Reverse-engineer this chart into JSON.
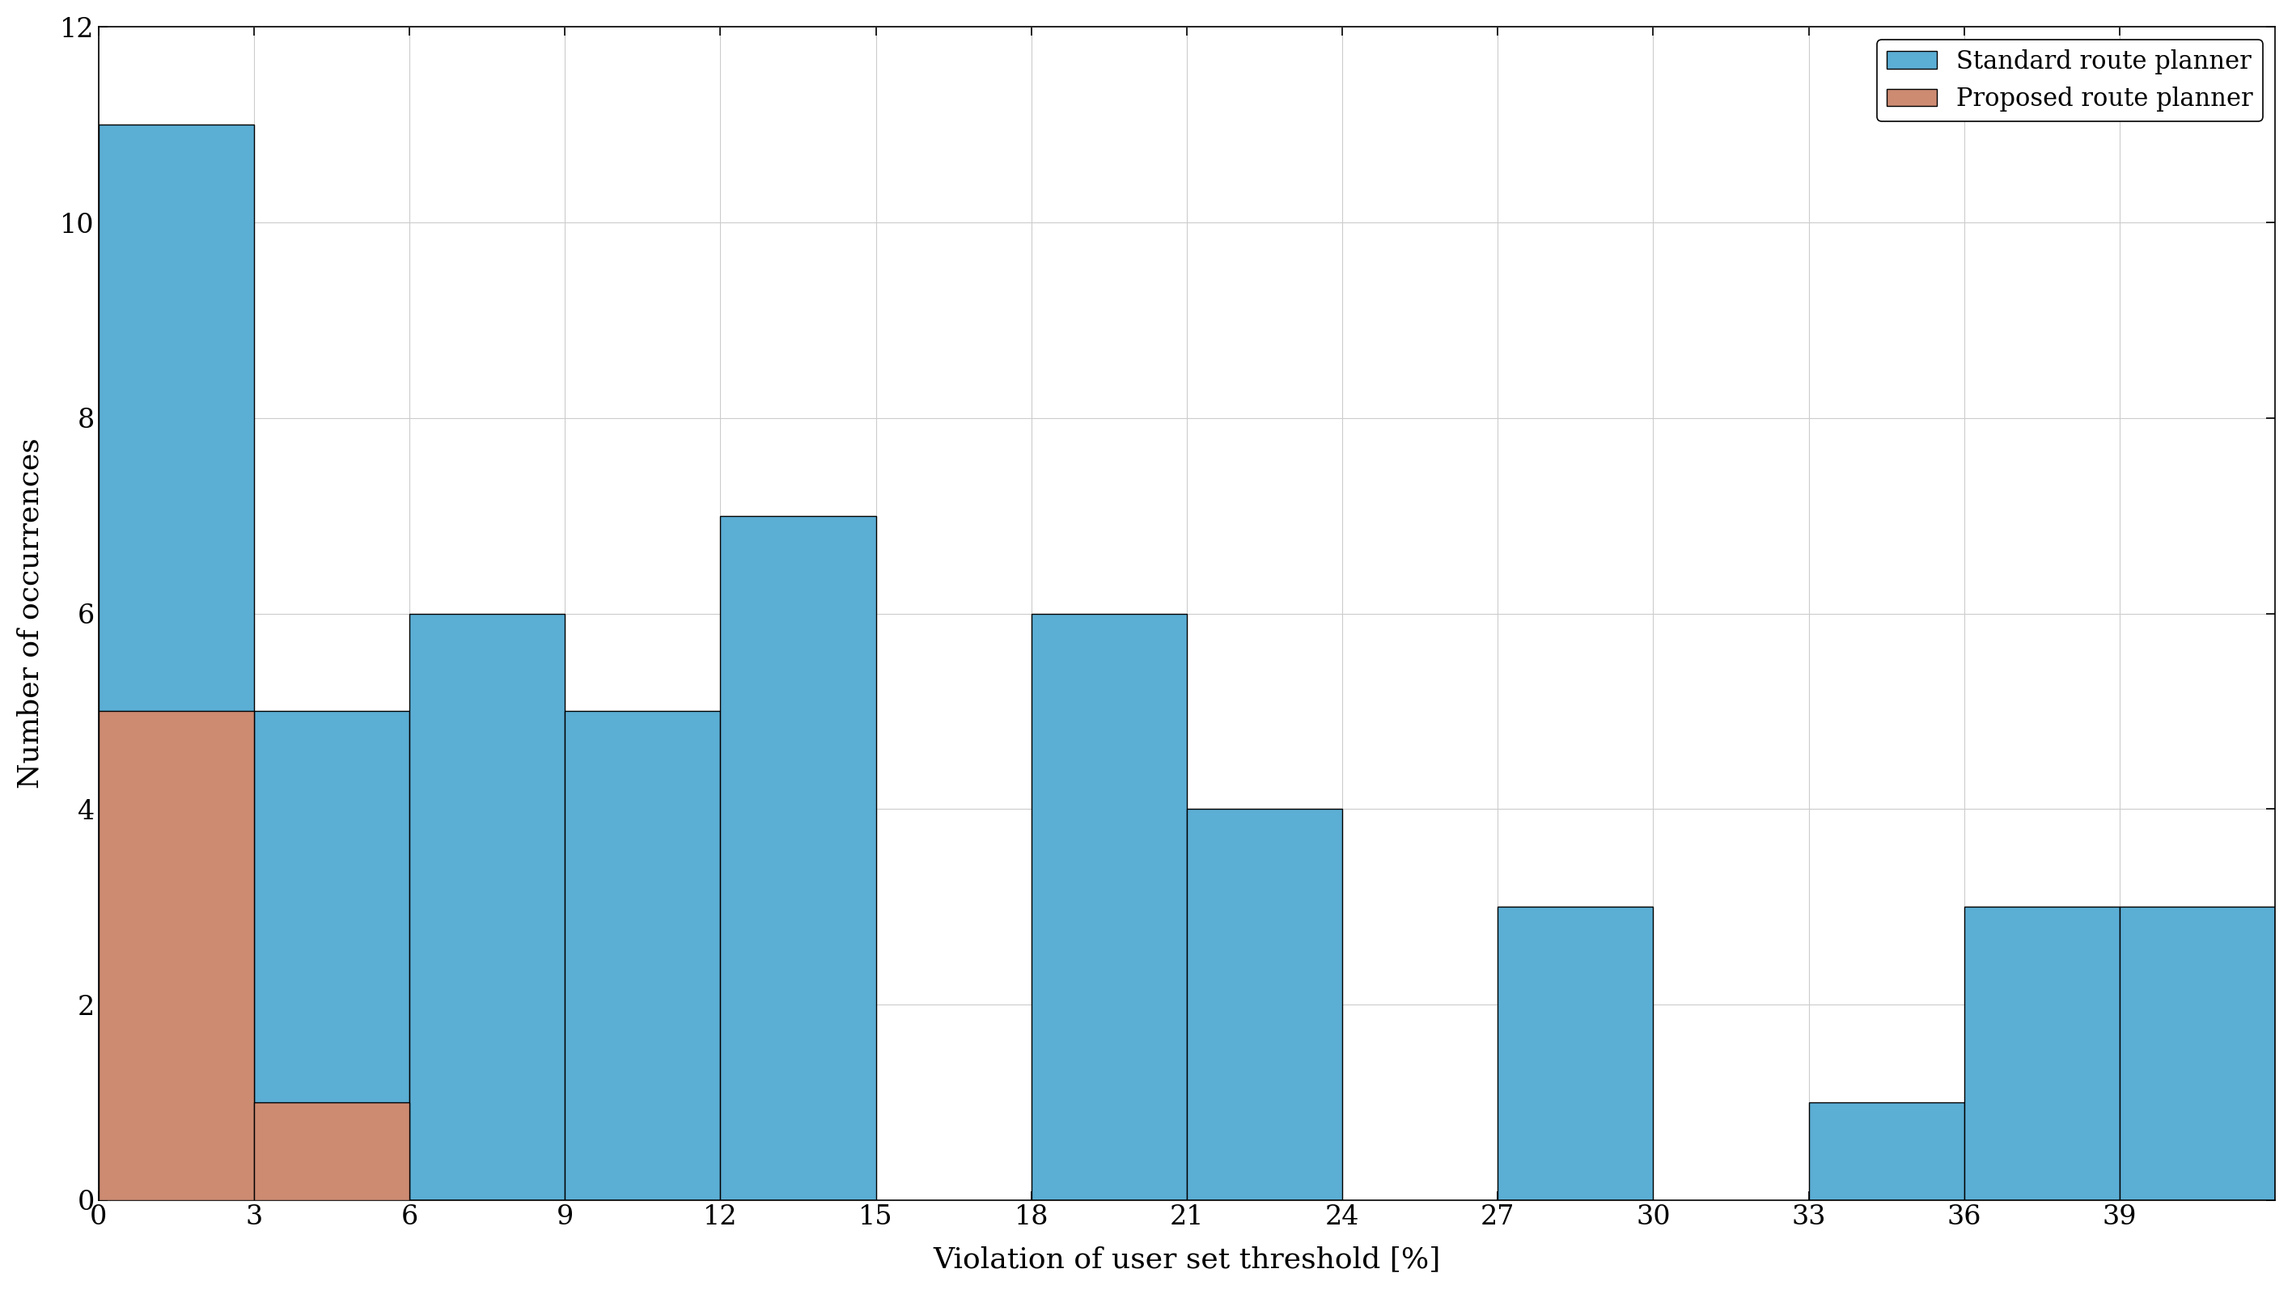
{
  "categories": [
    0,
    3,
    6,
    9,
    12,
    15,
    18,
    21,
    24,
    27,
    30,
    33,
    36,
    39
  ],
  "standard_values": [
    11,
    5,
    6,
    5,
    7,
    0,
    6,
    4,
    0,
    3,
    0,
    1,
    3,
    3
  ],
  "proposed_values": [
    5,
    1,
    0,
    0,
    0,
    0,
    0,
    0,
    0,
    0,
    0,
    0,
    0,
    0
  ],
  "standard_color": "#5BAED4",
  "proposed_color": "#CD8B72",
  "bin_width": 3.0,
  "xlabel": "Violation of user set threshold [%]",
  "ylabel": "Number of occurrences",
  "ylim": [
    0,
    12
  ],
  "yticks": [
    0,
    2,
    4,
    6,
    8,
    10,
    12
  ],
  "xticks": [
    0,
    3,
    6,
    9,
    12,
    15,
    18,
    21,
    24,
    27,
    30,
    33,
    36,
    39
  ],
  "legend_labels": [
    "Standard route planner",
    "Proposed route planner"
  ],
  "background_color": "#FFFFFF",
  "grid_color": "#CCCCCC",
  "axis_label_fontsize": 26,
  "tick_fontsize": 24,
  "legend_fontsize": 22
}
